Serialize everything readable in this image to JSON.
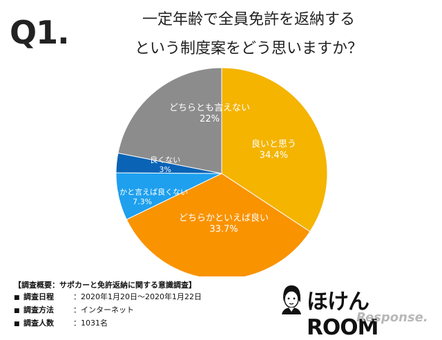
{
  "question_label": "Q1.",
  "title_line1": "一定年齢で全員免許を返納する",
  "title_line2": "という制度案をどう思いますか？",
  "chart_data": {
    "type": "pie",
    "title": "一定年齢で全員免許を返納するという制度案をどう思いますか？",
    "slices": [
      {
        "label": "良いと思う",
        "value": 34.4,
        "value_label": "34.4%",
        "color": "#F4B400"
      },
      {
        "label": "どちらかといえば良い",
        "value": 33.7,
        "value_label": "33.7%",
        "color": "#F99300"
      },
      {
        "label": "どちらかと言えば良くない",
        "value": 7.3,
        "value_label": "7.3%",
        "color": "#1EA0EE"
      },
      {
        "label": "良くない",
        "value": 3,
        "value_label": "3%",
        "color": "#0A63B5"
      },
      {
        "label": "どちらとも言えない",
        "value": 22,
        "value_label": "22%",
        "color": "#8C8C8C"
      }
    ]
  },
  "survey": {
    "heading": "【調査概要：サポカーと免許返納に関する意識調査】",
    "rows": [
      {
        "key": "調査日程",
        "value": "：2020年1月20日〜2020年1月22日"
      },
      {
        "key": "調査方法",
        "value": "：インターネット"
      },
      {
        "key": "調査人数",
        "value": "：1031名"
      }
    ],
    "bullet": "■"
  },
  "brand": {
    "name": "ほけんROOM",
    "sub": "Response."
  }
}
